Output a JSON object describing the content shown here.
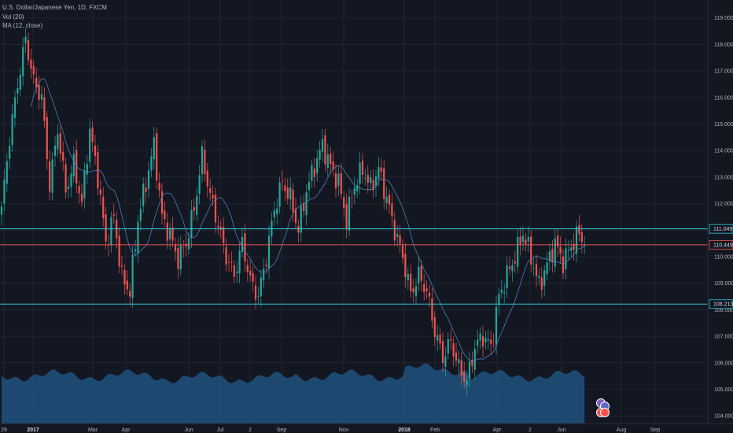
{
  "legend": {
    "symbol": "U.S. Dollar/Japanese Yen, 1D, FXCM",
    "volume": "Vol (20)",
    "ma": "MA (12, close)"
  },
  "colors": {
    "background": "#131722",
    "grid": "#2a2e39",
    "up": "#26a69a",
    "down": "#ef5350",
    "ma": "#4d7fb8",
    "volume": "#1f4f7a",
    "hline_support": "#2ec4d6",
    "hline_current": "#ef5350"
  },
  "chart_data": {
    "type": "candlestick",
    "y_ticks": [
      "119.000",
      "118.000",
      "117.000",
      "116.000",
      "115.000",
      "114.000",
      "113.000",
      "112.000",
      "111.000",
      "110.000",
      "109.000",
      "108.000",
      "107.000",
      "106.000",
      "105.000",
      "104.000"
    ],
    "ylim": [
      103.65,
      119.2
    ],
    "x_labels": [
      {
        "label": "29",
        "bold": false
      },
      {
        "label": "2017",
        "bold": true
      },
      {
        "label": "Mar",
        "bold": false
      },
      {
        "label": "Apr",
        "bold": false
      },
      {
        "label": "Jun",
        "bold": false
      },
      {
        "label": "Jul",
        "bold": false
      },
      {
        "label": "2",
        "bold": false
      },
      {
        "label": "Sep",
        "bold": false
      },
      {
        "label": "Nov",
        "bold": false
      },
      {
        "label": "2018",
        "bold": true
      },
      {
        "label": "Feb",
        "bold": false
      },
      {
        "label": "Apr",
        "bold": false
      },
      {
        "label": "2",
        "bold": false
      },
      {
        "label": "Jun",
        "bold": false
      },
      {
        "label": "Aug",
        "bold": false
      },
      {
        "label": "Sep",
        "bold": false
      }
    ],
    "horizontal_lines": [
      {
        "value": 111.049,
        "label": "111.049",
        "kind": "support"
      },
      {
        "value": 110.449,
        "label": "110.449",
        "kind": "current"
      },
      {
        "value": 108.213,
        "label": "108.213",
        "kind": "support"
      }
    ],
    "price_path": [
      [
        0,
        111.8
      ],
      [
        3,
        114.5
      ],
      [
        6,
        116.5
      ],
      [
        9,
        118.2
      ],
      [
        12,
        116.6
      ],
      [
        15,
        116.0
      ],
      [
        18,
        112.7
      ],
      [
        21,
        114.8
      ],
      [
        24,
        112.5
      ],
      [
        27,
        113.5
      ],
      [
        30,
        112.0
      ],
      [
        33,
        114.8
      ],
      [
        36,
        113.0
      ],
      [
        39,
        110.5
      ],
      [
        42,
        111.5
      ],
      [
        45,
        109.2
      ],
      [
        48,
        108.7
      ],
      [
        51,
        111.4
      ],
      [
        54,
        112.8
      ],
      [
        57,
        114.2
      ],
      [
        60,
        111.5
      ],
      [
        63,
        110.8
      ],
      [
        66,
        109.9
      ],
      [
        69,
        110.5
      ],
      [
        72,
        111.8
      ],
      [
        75,
        113.8
      ],
      [
        78,
        112.3
      ],
      [
        81,
        111.2
      ],
      [
        84,
        110.0
      ],
      [
        87,
        109.3
      ],
      [
        90,
        110.5
      ],
      [
        93,
        109.1
      ],
      [
        96,
        108.5
      ],
      [
        99,
        110.0
      ],
      [
        102,
        111.8
      ],
      [
        105,
        112.8
      ],
      [
        108,
        112.2
      ],
      [
        111,
        111.0
      ],
      [
        114,
        112.5
      ],
      [
        117,
        113.4
      ],
      [
        120,
        114.2
      ],
      [
        123,
        113.4
      ],
      [
        126,
        112.8
      ],
      [
        129,
        111.4
      ],
      [
        132,
        112.7
      ],
      [
        135,
        113.3
      ],
      [
        138,
        112.6
      ],
      [
        141,
        113.3
      ],
      [
        144,
        112.2
      ],
      [
        147,
        111.0
      ],
      [
        150,
        110.0
      ],
      [
        153,
        108.6
      ],
      [
        156,
        109.3
      ],
      [
        159,
        108.7
      ],
      [
        162,
        107.2
      ],
      [
        165,
        106.2
      ],
      [
        168,
        106.8
      ],
      [
        171,
        105.8
      ],
      [
        174,
        105.3
      ],
      [
        177,
        106.6
      ],
      [
        180,
        107.0
      ],
      [
        183,
        106.6
      ],
      [
        186,
        108.5
      ],
      [
        189,
        109.3
      ],
      [
        192,
        110.0
      ],
      [
        195,
        110.9
      ],
      [
        198,
        110.0
      ],
      [
        201,
        108.9
      ],
      [
        204,
        109.7
      ],
      [
        207,
        110.5
      ],
      [
        210,
        109.8
      ],
      [
        213,
        110.4
      ],
      [
        216,
        110.9
      ],
      [
        218,
        110.45
      ]
    ]
  }
}
